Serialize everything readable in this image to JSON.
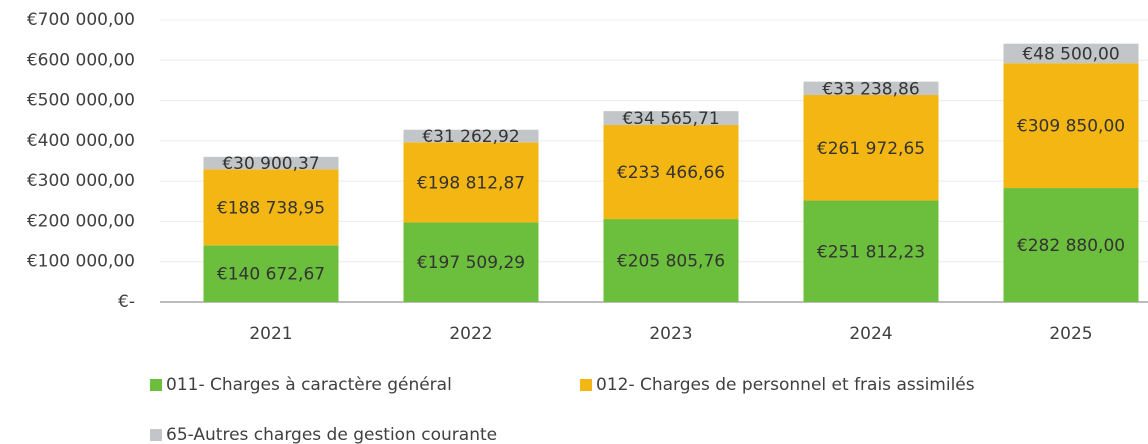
{
  "chart_data": {
    "type": "stacked_bar",
    "categories": [
      "2021",
      "2022",
      "2023",
      "2024",
      "2025"
    ],
    "series": [
      {
        "name": "011- Charges à caractère général",
        "color": "#6cbf3c",
        "values": [
          140672.67,
          197509.29,
          205805.76,
          251812.23,
          282880.0
        ],
        "value_labels": [
          "€140 672,67",
          "€197 509,29",
          "€205 805,76",
          "€251 812,23",
          "€282 880,00"
        ]
      },
      {
        "name": "012- Charges de personnel et frais assimilés",
        "color": "#f4b612",
        "values": [
          188738.95,
          198812.87,
          233466.66,
          261972.65,
          309850.0
        ],
        "value_labels": [
          "€188 738,95",
          "€198 812,87",
          "€233 466,66",
          "€261 972,65",
          "€309 850,00"
        ]
      },
      {
        "name": "65-Autres charges de gestion courante",
        "color": "#c3c6c8",
        "values": [
          30900.37,
          31262.92,
          34565.71,
          33238.86,
          48500.0
        ],
        "value_labels": [
          "€30 900,37",
          "€31 262,92",
          "€34 565,71",
          "€33 238,86",
          "€48 500,00"
        ]
      }
    ],
    "ylim": [
      0,
      700000
    ],
    "yticks": [
      {
        "value": 0,
        "label": "€-"
      },
      {
        "value": 100000,
        "label": "€100 000,00"
      },
      {
        "value": 200000,
        "label": "€200 000,00"
      },
      {
        "value": 300000,
        "label": "€300 000,00"
      },
      {
        "value": 400000,
        "label": "€400 000,00"
      },
      {
        "value": 500000,
        "label": "€500 000,00"
      },
      {
        "value": 600000,
        "label": "€600 000,00"
      },
      {
        "value": 700000,
        "label": "€700 000,00"
      }
    ],
    "grid": true,
    "legend": "bottom"
  }
}
